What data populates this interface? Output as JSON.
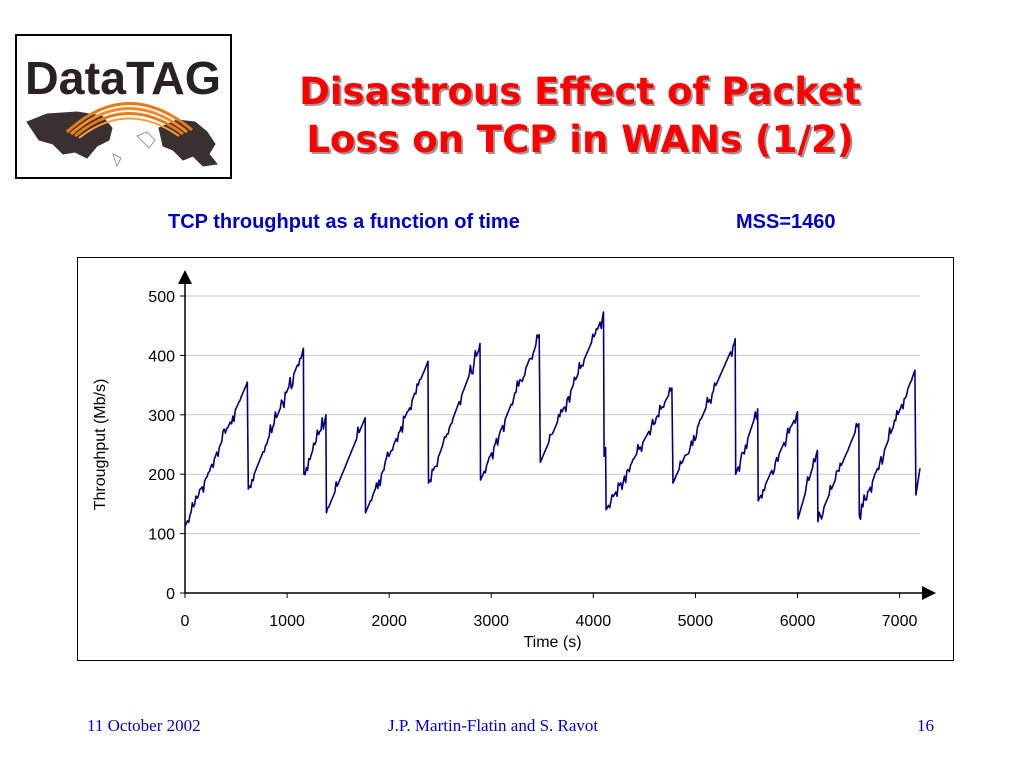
{
  "slide": {
    "title_line1": "Disastrous Effect of Packet",
    "title_line2": "Loss on TCP in WANs (1/2)",
    "chart_heading": "TCP throughput as a function of time",
    "chart_heading_mss": "MSS=1460"
  },
  "logo": {
    "text": "DataTAG"
  },
  "footer": {
    "date": "11 October 2002",
    "authors": "J.P. Martin-Flatin and S. Ravot",
    "page": "16"
  },
  "colors": {
    "title": "#ff0000",
    "heading": "#0000cc",
    "series": "#000080",
    "grid": "#c8c8c8"
  },
  "chart_data": {
    "type": "line",
    "title": "TCP throughput as a function of time",
    "subtitle": "MSS=1460",
    "xlabel": "Time (s)",
    "ylabel": "Throughput (Mb/s)",
    "xlim": [
      0,
      7200
    ],
    "ylim": [
      0,
      500
    ],
    "x_ticks": [
      0,
      1000,
      2000,
      3000,
      4000,
      5000,
      6000,
      7000
    ],
    "y_ticks": [
      0,
      100,
      200,
      300,
      400,
      500
    ],
    "grid": "horizontal",
    "legend": "none",
    "series": [
      {
        "values": [
          [
            0,
            112
          ],
          [
            600,
            350
          ],
          [
            610,
            355
          ],
          [
            620,
            175
          ],
          [
            1150,
            405
          ],
          [
            1160,
            412
          ],
          [
            1165,
            200
          ],
          [
            1380,
            300
          ],
          [
            1385,
            135
          ],
          [
            1765,
            295
          ],
          [
            1768,
            135
          ],
          [
            2370,
            385
          ],
          [
            2380,
            390
          ],
          [
            2385,
            185
          ],
          [
            2880,
            410
          ],
          [
            2890,
            420
          ],
          [
            2895,
            190
          ],
          [
            3460,
            430
          ],
          [
            3470,
            435
          ],
          [
            3480,
            220
          ],
          [
            4090,
            465
          ],
          [
            4100,
            473
          ],
          [
            4105,
            230
          ],
          [
            4120,
            245
          ],
          [
            4125,
            140
          ],
          [
            4760,
            340
          ],
          [
            4770,
            345
          ],
          [
            4780,
            185
          ],
          [
            5380,
            420
          ],
          [
            5390,
            428
          ],
          [
            5395,
            200
          ],
          [
            5610,
            310
          ],
          [
            5615,
            155
          ],
          [
            5990,
            300
          ],
          [
            6000,
            305
          ],
          [
            6005,
            125
          ],
          [
            6195,
            240
          ],
          [
            6200,
            120
          ],
          [
            6600,
            285
          ],
          [
            6605,
            130
          ],
          [
            7140,
            370
          ],
          [
            7150,
            375
          ],
          [
            7160,
            165
          ],
          [
            7200,
            210
          ]
        ]
      }
    ]
  }
}
